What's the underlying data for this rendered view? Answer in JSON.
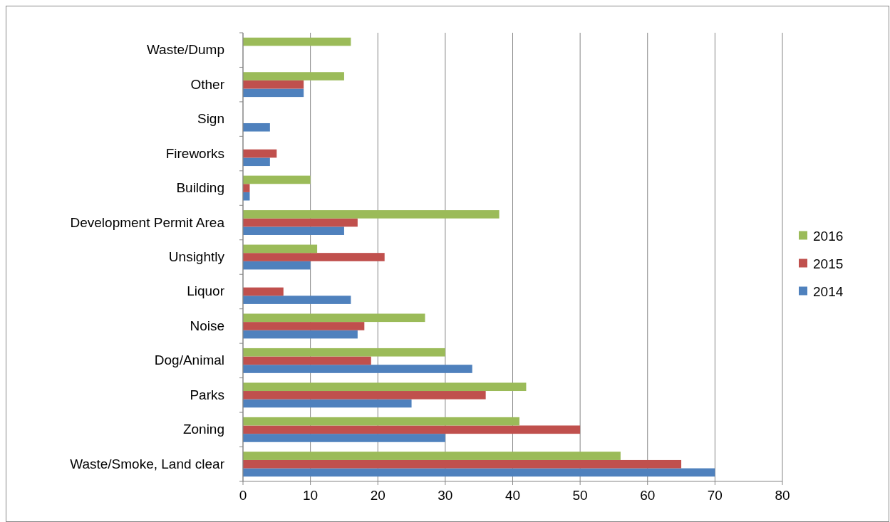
{
  "chart_data": {
    "type": "bar",
    "orientation": "horizontal",
    "categories": [
      "Waste/Dump",
      "Other",
      "Sign",
      "Fireworks",
      "Building",
      "Development Permit Area",
      "Unsightly",
      "Liquor",
      "Noise",
      "Dog/Animal",
      "Parks",
      "Zoning",
      "Waste/Smoke, Land clear"
    ],
    "series": [
      {
        "name": "2014",
        "color": "#4f81bd",
        "values": [
          null,
          9,
          4,
          4,
          1,
          15,
          10,
          16,
          17,
          34,
          25,
          30,
          70
        ]
      },
      {
        "name": "2015",
        "color": "#c0504d",
        "values": [
          null,
          9,
          null,
          5,
          1,
          17,
          21,
          6,
          18,
          19,
          36,
          50,
          65
        ]
      },
      {
        "name": "2016",
        "color": "#9bbb59",
        "values": [
          16,
          15,
          null,
          null,
          10,
          38,
          11,
          null,
          27,
          30,
          42,
          41,
          56
        ]
      }
    ],
    "xlim": [
      0,
      80
    ],
    "xticks": [
      0,
      10,
      20,
      30,
      40,
      50,
      60,
      70,
      80
    ],
    "grid": "x",
    "legend": "right"
  }
}
